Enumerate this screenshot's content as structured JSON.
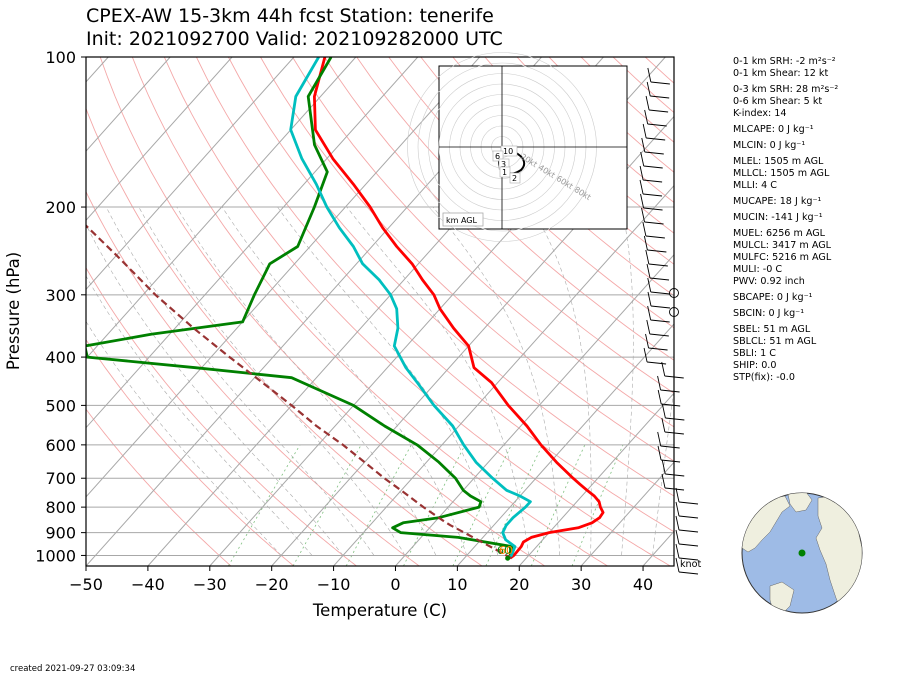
{
  "title": {
    "line1": "CPEX-AW 15-3km  44h fcst  Station: tenerife",
    "line2": "Init: 2021092700  Valid: 202109282000 UTC"
  },
  "chart_data": {
    "type": "line",
    "xlabel": "Temperature (C)",
    "ylabel": "Pressure (hPa)",
    "xlim": [
      -50,
      45
    ],
    "ylim": [
      1050,
      100
    ],
    "y_scale": "log",
    "x_ticks": [
      "−50",
      "−40",
      "−30",
      "−20",
      "−10",
      "0",
      "10",
      "20",
      "30",
      "40"
    ],
    "x_tick_values": [
      -50,
      -40,
      -30,
      -20,
      -10,
      0,
      10,
      20,
      30,
      40
    ],
    "y_ticks": [
      "100",
      "200",
      "300",
      "400",
      "500",
      "600",
      "700",
      "800",
      "900",
      "1000"
    ],
    "y_tick_values": [
      100,
      200,
      300,
      400,
      500,
      600,
      700,
      800,
      900,
      1000
    ],
    "skew": "skew-T log-p",
    "grid": true,
    "series": [
      {
        "role": "temperature",
        "color": "#ff0000",
        "points": [
          [
            1013,
            17.4
          ],
          [
            1000,
            17.6
          ],
          [
            960,
            17.5
          ],
          [
            940,
            17.2
          ],
          [
            920,
            17.8
          ],
          [
            900,
            20
          ],
          [
            880,
            24
          ],
          [
            860,
            25.5
          ],
          [
            840,
            26
          ],
          [
            820,
            25.8
          ],
          [
            800,
            24.6
          ],
          [
            780,
            23.6
          ],
          [
            760,
            22
          ],
          [
            740,
            20
          ],
          [
            720,
            18
          ],
          [
            700,
            16
          ],
          [
            650,
            11
          ],
          [
            600,
            6
          ],
          [
            550,
            1
          ],
          [
            500,
            -5
          ],
          [
            450,
            -11
          ],
          [
            420,
            -16
          ],
          [
            380,
            -20
          ],
          [
            350,
            -25
          ],
          [
            320,
            -30
          ],
          [
            300,
            -33
          ],
          [
            280,
            -37
          ],
          [
            260,
            -41
          ],
          [
            240,
            -46
          ],
          [
            220,
            -51
          ],
          [
            200,
            -56
          ],
          [
            180,
            -62
          ],
          [
            160,
            -69
          ],
          [
            140,
            -76
          ],
          [
            120,
            -81
          ],
          [
            100,
            -85
          ]
        ]
      },
      {
        "role": "dewpoint",
        "color": "#008000",
        "points": [
          [
            1013,
            17
          ],
          [
            1000,
            17
          ],
          [
            960,
            16
          ],
          [
            920,
            6
          ],
          [
            900,
            -4
          ],
          [
            880,
            -6
          ],
          [
            860,
            -5
          ],
          [
            840,
            0
          ],
          [
            800,
            5
          ],
          [
            780,
            4.5
          ],
          [
            760,
            2
          ],
          [
            740,
            0
          ],
          [
            700,
            -3
          ],
          [
            650,
            -8
          ],
          [
            600,
            -14
          ],
          [
            550,
            -22
          ],
          [
            500,
            -30
          ],
          [
            440,
            -44
          ],
          [
            420,
            -61
          ],
          [
            400,
            -80
          ],
          [
            380,
            -82
          ],
          [
            360,
            -73
          ],
          [
            340,
            -60
          ],
          [
            300,
            -62
          ],
          [
            260,
            -64
          ],
          [
            240,
            -62
          ],
          [
            200,
            -65
          ],
          [
            170,
            -68
          ],
          [
            150,
            -74
          ],
          [
            120,
            -82
          ],
          [
            100,
            -84
          ]
        ]
      },
      {
        "role": "wetbulb",
        "color": "#00bfbf",
        "points": [
          [
            1013,
            17.2
          ],
          [
            1000,
            17.2
          ],
          [
            960,
            16.5
          ],
          [
            930,
            14
          ],
          [
            900,
            12.5
          ],
          [
            870,
            12
          ],
          [
            840,
            12
          ],
          [
            800,
            12.5
          ],
          [
            780,
            12.5
          ],
          [
            760,
            10
          ],
          [
            740,
            7
          ],
          [
            700,
            3
          ],
          [
            650,
            -2
          ],
          [
            600,
            -6.5
          ],
          [
            550,
            -11
          ],
          [
            500,
            -17
          ],
          [
            450,
            -23
          ],
          [
            420,
            -27
          ],
          [
            380,
            -32
          ],
          [
            350,
            -34
          ],
          [
            320,
            -37
          ],
          [
            300,
            -40
          ],
          [
            280,
            -44
          ],
          [
            260,
            -49
          ],
          [
            240,
            -53
          ],
          [
            220,
            -58
          ],
          [
            200,
            -63
          ],
          [
            180,
            -68
          ],
          [
            160,
            -74
          ],
          [
            140,
            -80
          ],
          [
            120,
            -84
          ],
          [
            100,
            -86
          ]
        ]
      },
      {
        "role": "parcel",
        "color": "#993333",
        "dashed": true,
        "points": [
          [
            1013,
            17.6
          ],
          [
            980,
            14.5
          ],
          [
            950,
            11.5
          ],
          [
            920,
            8.4
          ],
          [
            900,
            6.3
          ],
          [
            870,
            3
          ],
          [
            850,
            1
          ],
          [
            800,
            -4
          ],
          [
            750,
            -9
          ],
          [
            700,
            -14.5
          ],
          [
            650,
            -20
          ],
          [
            600,
            -26
          ],
          [
            550,
            -33
          ],
          [
            500,
            -40
          ],
          [
            450,
            -48
          ],
          [
            400,
            -57
          ],
          [
            350,
            -67
          ],
          [
            300,
            -78
          ],
          [
            250,
            -90
          ],
          [
            200,
            -105
          ],
          [
            150,
            -124
          ],
          [
            120,
            -139
          ],
          [
            100,
            -153
          ]
        ]
      }
    ],
    "surface_labels": [
      {
        "text": "60",
        "color": "#008000"
      },
      {
        "text": "60",
        "color": "#ff7f00"
      }
    ],
    "hodograph": {
      "label": "km AGL",
      "speed_labels": [
        "20kt",
        "40kt",
        "60kt",
        "80kt"
      ],
      "height_labels": [
        "10",
        "6",
        "3",
        "1",
        "2"
      ]
    },
    "barb_unit": "knot",
    "inset_map": {
      "region": "North Atlantic",
      "marker_color": "#008000",
      "ocean_color": "#9ebbe6",
      "land_color": "#efefdf"
    }
  },
  "indices": [
    "0-1 km SRH: -2 m²s⁻²",
    "0-1 km Shear: 12 kt",
    "0-3 km SRH: 28 m²s⁻²",
    "0-6 km Shear: 5 kt",
    "K-index: 14",
    "MLCAPE: 0 J kg⁻¹",
    "MLCIN: 0 J kg⁻¹",
    "MLEL: 1505 m AGL",
    "MLLCL: 1505 m AGL",
    "MLLI: 4 C",
    "MUCAPE: 18 J kg⁻¹",
    "MUCIN: -141 J kg⁻¹",
    "MUEL: 6256 m AGL",
    "MULCL: 3417 m AGL",
    "MULFC: 5216 m AGL",
    "MULI: -0 C",
    "PWV: 0.92 inch",
    "SBCAPE: 0 J kg⁻¹",
    "SBCIN: 0 J kg⁻¹",
    "SBEL: 51 m AGL",
    "SBLCL: 51 m AGL",
    "SBLI: 1 C",
    "SHIP: 0.0",
    "STP(fix): -0.0"
  ],
  "created": "created 2021-09-27 03:09:34"
}
